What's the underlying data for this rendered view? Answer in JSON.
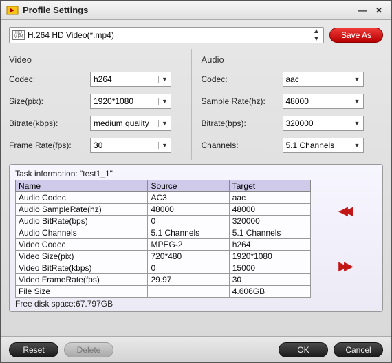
{
  "window": {
    "title": "Profile Settings"
  },
  "profile": {
    "selected": "H.264 HD Video(*.mp4)",
    "save_as": "Save As"
  },
  "video": {
    "section": "Video",
    "codec_label": "Codec:",
    "codec": "h264",
    "size_label": "Size(pix):",
    "size": "1920*1080",
    "bitrate_label": "Bitrate(kbps):",
    "bitrate": "medium quality",
    "fps_label": "Frame Rate(fps):",
    "fps": "30"
  },
  "audio": {
    "section": "Audio",
    "codec_label": "Codec:",
    "codec": "aac",
    "rate_label": "Sample Rate(hz):",
    "rate": "48000",
    "bitrate_label": "Bitrate(bps):",
    "bitrate": "320000",
    "channels_label": "Channels:",
    "channels": "5.1 Channels"
  },
  "task": {
    "title": "Task information: \"test1_1\"",
    "columns": [
      "Name",
      "Source",
      "Target"
    ],
    "rows": [
      [
        "Audio Codec",
        "AC3",
        "aac"
      ],
      [
        "Audio SampleRate(hz)",
        "48000",
        "48000"
      ],
      [
        "Audio BitRate(bps)",
        "0",
        "320000"
      ],
      [
        "Audio Channels",
        "5.1 Channels",
        "5.1 Channels"
      ],
      [
        "Video Codec",
        "MPEG-2",
        "h264"
      ],
      [
        "Video Size(pix)",
        "720*480",
        "1920*1080"
      ],
      [
        "Video BitRate(kbps)",
        "0",
        "15000"
      ],
      [
        "Video FrameRate(fps)",
        "29.97",
        "30"
      ],
      [
        "File Size",
        "",
        "4.606GB"
      ]
    ],
    "free_disk": "Free disk space:67.797GB"
  },
  "footer": {
    "reset": "Reset",
    "delete": "Delete",
    "ok": "OK",
    "cancel": "Cancel"
  },
  "colors": {
    "accent_red": "#c21717",
    "header_purple": "#cfc9ea"
  }
}
